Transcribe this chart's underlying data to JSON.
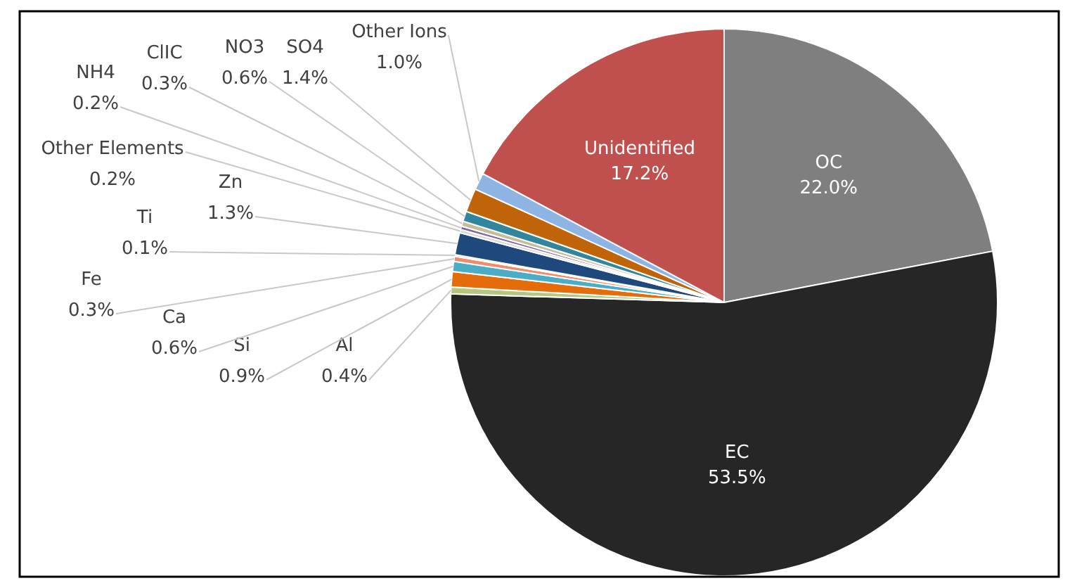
{
  "chart_data": {
    "type": "pie",
    "categories": [
      "OC",
      "EC",
      "Al",
      "Si",
      "Ca",
      "Fe",
      "Ti",
      "Zn",
      "Other Elements",
      "NH4",
      "ClIC",
      "NO3",
      "SO4",
      "Other Ions",
      "Unidentified"
    ],
    "values": [
      22.0,
      53.5,
      0.4,
      0.9,
      0.6,
      0.3,
      0.1,
      1.3,
      0.2,
      0.2,
      0.3,
      0.6,
      1.4,
      1.0,
      17.2
    ],
    "value_labels": [
      "22.0%",
      "53.5%",
      "0.4%",
      "0.9%",
      "0.6%",
      "0.3%",
      "0.1%",
      "1.3%",
      "0.2%",
      "0.2%",
      "0.3%",
      "0.6%",
      "1.4%",
      "1.0%",
      "17.2%"
    ],
    "colors": [
      "#7f7f7f",
      "#262626",
      "#b5c77f",
      "#e46c0a",
      "#4bacc6",
      "#f08a6a",
      "#a6a6a6",
      "#1f497d",
      "#d9d9d9",
      "#8064a2",
      "#c4bd97",
      "#31859c",
      "#c0640a",
      "#8eb4e3",
      "#c0504d"
    ],
    "legend": false
  }
}
